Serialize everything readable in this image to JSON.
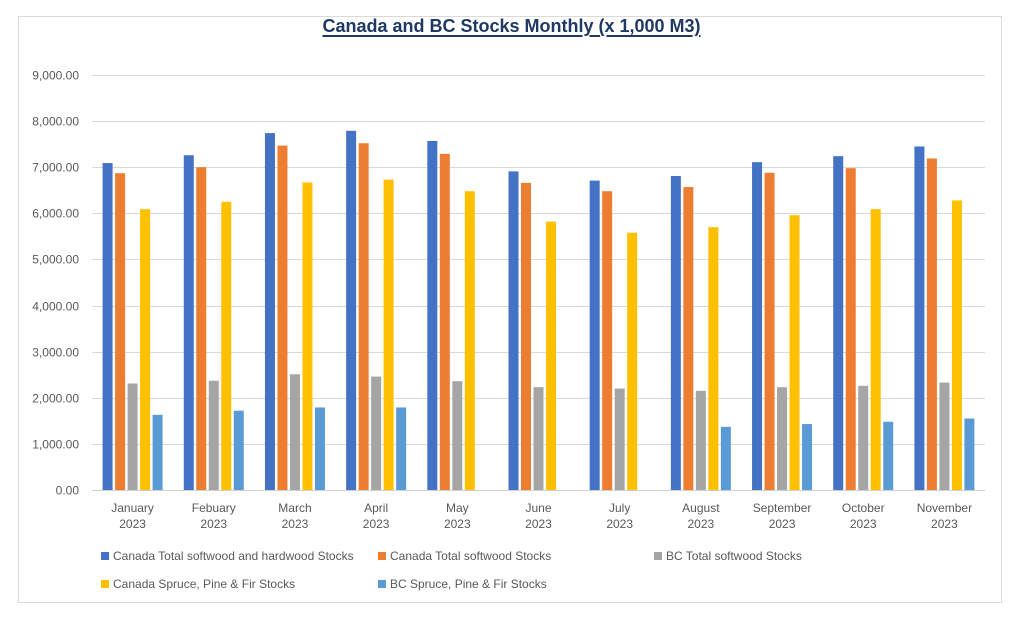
{
  "chart_data": {
    "type": "bar",
    "title": "Canada and BC Stocks  Monthly (x 1,000 M3)",
    "xlabel": "",
    "ylabel": "",
    "ylim": [
      0,
      9000
    ],
    "yticks": [
      0,
      1000,
      2000,
      3000,
      4000,
      5000,
      6000,
      7000,
      8000,
      9000
    ],
    "ytick_labels": [
      "0.00",
      "1,000.00",
      "2,000.00",
      "3,000.00",
      "4,000.00",
      "5,000.00",
      "6,000.00",
      "7,000.00",
      "8,000.00",
      "9,000.00"
    ],
    "grid": true,
    "legend_position": "bottom",
    "categories": [
      [
        "January",
        "2023"
      ],
      [
        "Febuary",
        "2023"
      ],
      [
        "March",
        "2023"
      ],
      [
        "April",
        "2023"
      ],
      [
        "May",
        "2023"
      ],
      [
        "June",
        "2023"
      ],
      [
        "July",
        "2023"
      ],
      [
        "August",
        "2023"
      ],
      [
        "September",
        "2023"
      ],
      [
        "October",
        "2023"
      ],
      [
        "November",
        "2023"
      ]
    ],
    "series": [
      {
        "name": "Canada Total softwood and hardwood Stocks",
        "color": "#4472c4",
        "values": [
          7090,
          7260,
          7740,
          7790,
          7570,
          6910,
          6710,
          6810,
          7110,
          7240,
          7450
        ]
      },
      {
        "name": "Canada Total softwood Stocks",
        "color": "#ed7d31",
        "values": [
          6870,
          7000,
          7470,
          7520,
          7290,
          6660,
          6480,
          6570,
          6880,
          6980,
          7190
        ]
      },
      {
        "name": "BC Total softwood Stocks",
        "color": "#a5a5a5",
        "values": [
          2310,
          2370,
          2510,
          2460,
          2360,
          2230,
          2200,
          2150,
          2230,
          2260,
          2330
        ]
      },
      {
        "name": "Canada Spruce, Pine & Fir Stocks",
        "color": "#ffc000",
        "values": [
          6090,
          6250,
          6670,
          6730,
          6480,
          5820,
          5580,
          5700,
          5960,
          6090,
          6280
        ]
      },
      {
        "name": "BC Spruce, Pine & Fir Stocks",
        "color": "#5b9bd5",
        "values": [
          1630,
          1720,
          1790,
          1790,
          null,
          null,
          null,
          1370,
          1430,
          1480,
          1550
        ]
      }
    ]
  }
}
